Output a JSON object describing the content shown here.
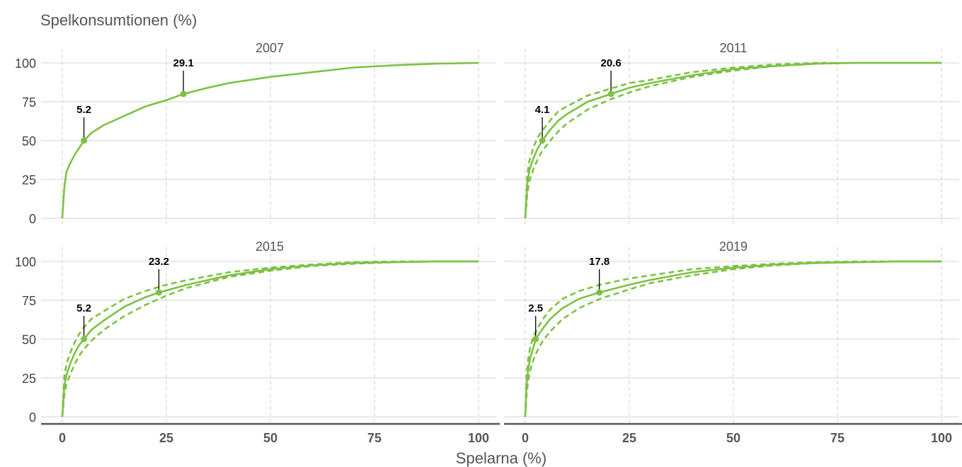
{
  "chart_data": {
    "type": "line",
    "ylabel": "Spelkonsumtionen (%)",
    "xlabel": "Spelarna (%)",
    "xlim": [
      0,
      100
    ],
    "ylim": [
      0,
      100
    ],
    "x_ticks": [
      "0",
      "25",
      "50",
      "75",
      "100"
    ],
    "y_ticks": [
      "0",
      "25",
      "50",
      "75",
      "100"
    ],
    "grid": true,
    "color": "#7dc144",
    "panels": [
      {
        "title": "2007",
        "curve": [
          [
            0,
            0
          ],
          [
            0.5,
            20
          ],
          [
            1,
            30
          ],
          [
            2,
            36
          ],
          [
            3,
            41
          ],
          [
            4,
            45
          ],
          [
            5.2,
            50
          ],
          [
            7,
            55
          ],
          [
            10,
            60
          ],
          [
            15,
            66
          ],
          [
            20,
            72
          ],
          [
            25,
            76
          ],
          [
            29.1,
            80
          ],
          [
            35,
            84
          ],
          [
            40,
            87
          ],
          [
            50,
            91
          ],
          [
            60,
            94
          ],
          [
            70,
            97
          ],
          [
            80,
            98.5
          ],
          [
            90,
            99.5
          ],
          [
            100,
            100
          ]
        ],
        "lower": [],
        "upper": [],
        "annotations": [
          {
            "label": "5.2",
            "x": 5.2,
            "y": 50
          },
          {
            "label": "29.1",
            "x": 29.1,
            "y": 80
          }
        ]
      },
      {
        "title": "2011",
        "curve": [
          [
            0,
            0
          ],
          [
            0.5,
            22
          ],
          [
            1,
            31
          ],
          [
            2,
            39
          ],
          [
            3,
            45
          ],
          [
            4.1,
            50
          ],
          [
            6,
            57
          ],
          [
            8,
            63
          ],
          [
            10,
            67
          ],
          [
            15,
            75
          ],
          [
            20.6,
            80
          ],
          [
            25,
            84
          ],
          [
            30,
            87
          ],
          [
            40,
            92
          ],
          [
            50,
            96
          ],
          [
            60,
            98
          ],
          [
            70,
            99.5
          ],
          [
            80,
            100
          ],
          [
            100,
            100
          ]
        ],
        "lower": [
          [
            0,
            0
          ],
          [
            0.5,
            16
          ],
          [
            1,
            24
          ],
          [
            2,
            32
          ],
          [
            3,
            38
          ],
          [
            4,
            43
          ],
          [
            6,
            50
          ],
          [
            8,
            56
          ],
          [
            10,
            61
          ],
          [
            15,
            70
          ],
          [
            20,
            76
          ],
          [
            25,
            81
          ],
          [
            30,
            85
          ],
          [
            40,
            91
          ],
          [
            50,
            95
          ],
          [
            60,
            98
          ],
          [
            70,
            99.5
          ],
          [
            80,
            100
          ],
          [
            100,
            100
          ]
        ],
        "upper": [
          [
            0,
            0
          ],
          [
            0.5,
            28
          ],
          [
            1,
            37
          ],
          [
            2,
            46
          ],
          [
            3,
            52
          ],
          [
            4,
            56
          ],
          [
            6,
            63
          ],
          [
            8,
            69
          ],
          [
            10,
            72
          ],
          [
            15,
            79
          ],
          [
            20,
            83
          ],
          [
            25,
            87
          ],
          [
            30,
            89
          ],
          [
            40,
            94
          ],
          [
            50,
            97
          ],
          [
            60,
            99
          ],
          [
            70,
            100
          ],
          [
            80,
            100
          ],
          [
            100,
            100
          ]
        ],
        "annotations": [
          {
            "label": "4.1",
            "x": 4.1,
            "y": 50
          },
          {
            "label": "20.6",
            "x": 20.6,
            "y": 80
          }
        ]
      },
      {
        "title": "2015",
        "curve": [
          [
            0,
            0
          ],
          [
            0.5,
            20
          ],
          [
            1,
            27
          ],
          [
            2,
            35
          ],
          [
            3,
            41
          ],
          [
            4,
            46
          ],
          [
            5.2,
            50
          ],
          [
            7,
            56
          ],
          [
            10,
            62
          ],
          [
            15,
            71
          ],
          [
            20,
            77
          ],
          [
            23.2,
            80
          ],
          [
            30,
            85
          ],
          [
            40,
            91
          ],
          [
            50,
            95
          ],
          [
            60,
            97.5
          ],
          [
            70,
            99
          ],
          [
            80,
            99.5
          ],
          [
            90,
            100
          ],
          [
            100,
            100
          ]
        ],
        "lower": [
          [
            0,
            0
          ],
          [
            0.5,
            14
          ],
          [
            1,
            21
          ],
          [
            2,
            28
          ],
          [
            3,
            34
          ],
          [
            4,
            39
          ],
          [
            5,
            43
          ],
          [
            7,
            49
          ],
          [
            10,
            56
          ],
          [
            15,
            65
          ],
          [
            20,
            72
          ],
          [
            25,
            78
          ],
          [
            30,
            83
          ],
          [
            40,
            90
          ],
          [
            50,
            94
          ],
          [
            60,
            97
          ],
          [
            70,
            98.5
          ],
          [
            80,
            99.5
          ],
          [
            90,
            100
          ],
          [
            100,
            100
          ]
        ],
        "upper": [
          [
            0,
            0
          ],
          [
            0.5,
            26
          ],
          [
            1,
            34
          ],
          [
            2,
            42
          ],
          [
            3,
            48
          ],
          [
            4,
            53
          ],
          [
            5,
            57
          ],
          [
            7,
            63
          ],
          [
            10,
            68
          ],
          [
            15,
            76
          ],
          [
            20,
            81
          ],
          [
            25,
            85
          ],
          [
            30,
            88
          ],
          [
            40,
            93
          ],
          [
            50,
            96
          ],
          [
            60,
            98
          ],
          [
            70,
            99.5
          ],
          [
            80,
            100
          ],
          [
            100,
            100
          ]
        ],
        "annotations": [
          {
            "label": "5.2",
            "x": 5.2,
            "y": 50
          },
          {
            "label": "23.2",
            "x": 23.2,
            "y": 80
          }
        ]
      },
      {
        "title": "2019",
        "curve": [
          [
            0,
            0
          ],
          [
            0.3,
            20
          ],
          [
            0.7,
            30
          ],
          [
            1.2,
            38
          ],
          [
            2,
            45
          ],
          [
            2.5,
            50
          ],
          [
            4,
            56
          ],
          [
            6,
            63
          ],
          [
            9,
            70
          ],
          [
            13,
            76
          ],
          [
            17.8,
            80
          ],
          [
            25,
            85
          ],
          [
            30,
            88
          ],
          [
            40,
            93
          ],
          [
            50,
            96
          ],
          [
            60,
            98
          ],
          [
            70,
            99
          ],
          [
            80,
            99.5
          ],
          [
            90,
            100
          ],
          [
            100,
            100
          ]
        ],
        "lower": [
          [
            0,
            0
          ],
          [
            0.3,
            14
          ],
          [
            0.7,
            23
          ],
          [
            1.2,
            30
          ],
          [
            2,
            37
          ],
          [
            3,
            43
          ],
          [
            4,
            48
          ],
          [
            6,
            55
          ],
          [
            9,
            63
          ],
          [
            13,
            70
          ],
          [
            18,
            76
          ],
          [
            25,
            82
          ],
          [
            30,
            86
          ],
          [
            40,
            91
          ],
          [
            50,
            95
          ],
          [
            60,
            97.5
          ],
          [
            70,
            99
          ],
          [
            80,
            99.5
          ],
          [
            90,
            100
          ],
          [
            100,
            100
          ]
        ],
        "upper": [
          [
            0,
            0
          ],
          [
            0.3,
            26
          ],
          [
            0.7,
            37
          ],
          [
            1.2,
            45
          ],
          [
            2,
            52
          ],
          [
            3,
            57
          ],
          [
            4,
            62
          ],
          [
            6,
            69
          ],
          [
            9,
            76
          ],
          [
            13,
            81
          ],
          [
            18,
            85
          ],
          [
            25,
            89
          ],
          [
            30,
            91
          ],
          [
            40,
            95
          ],
          [
            50,
            97
          ],
          [
            60,
            98.5
          ],
          [
            70,
            99.5
          ],
          [
            80,
            100
          ],
          [
            100,
            100
          ]
        ],
        "annotations": [
          {
            "label": "2.5",
            "x": 2.5,
            "y": 50
          },
          {
            "label": "17.8",
            "x": 17.8,
            "y": 80
          }
        ]
      }
    ]
  }
}
